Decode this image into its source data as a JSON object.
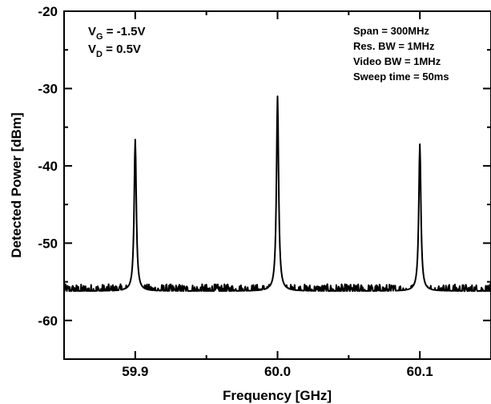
{
  "chart_data": {
    "type": "line",
    "xlabel": "Frequency [GHz]",
    "ylabel": "Detected Power [dBm]",
    "xlim": [
      59.85,
      60.15
    ],
    "ylim": [
      -65,
      -20
    ],
    "x_ticks": [
      59.9,
      60.0,
      60.1
    ],
    "x_tick_labels": [
      "59.9",
      "60.0",
      "60.1"
    ],
    "y_ticks": [
      -20,
      -30,
      -40,
      -50,
      -60
    ],
    "y_tick_labels": [
      "-20",
      "-30",
      "-40",
      "-50",
      "-60"
    ],
    "grid": false,
    "noise_floor": -56.2,
    "peaks": [
      {
        "x": 59.9,
        "y": -36.6
      },
      {
        "x": 60.0,
        "y": -31.0
      },
      {
        "x": 60.1,
        "y": -37.2
      }
    ],
    "line_color": "#000000"
  },
  "annotations": {
    "left": {
      "vg_base": "V",
      "vg_sub": "G",
      "vg_value": " = -1.5V",
      "vd_base": "V",
      "vd_sub": "D",
      "vd_value": " = 0.5V"
    },
    "right": [
      "Span = 300MHz",
      "Res. BW = 1MHz",
      "Video BW = 1MHz",
      "Sweep time = 50ms"
    ]
  }
}
